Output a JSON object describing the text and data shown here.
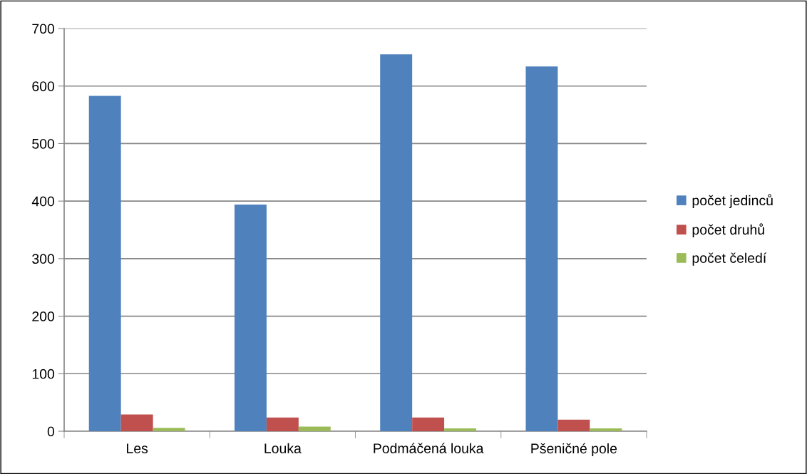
{
  "chart_data": {
    "type": "bar",
    "categories": [
      "Les",
      "Louka",
      "Podmáčená louka",
      "Pšeničné pole"
    ],
    "series": [
      {
        "name": "počet jedinců",
        "color": "#4f81bd",
        "values": [
          583,
          394,
          655,
          634
        ]
      },
      {
        "name": "počet druhů",
        "color": "#c0504d",
        "values": [
          29,
          24,
          24,
          20
        ]
      },
      {
        "name": "počet čeledí",
        "color": "#9bbb59",
        "values": [
          6,
          8,
          5,
          5
        ]
      }
    ],
    "ylim": [
      0,
      700
    ],
    "yticks": [
      0,
      100,
      200,
      300,
      400,
      500,
      600,
      700
    ],
    "grid": "y",
    "legend": "right"
  }
}
